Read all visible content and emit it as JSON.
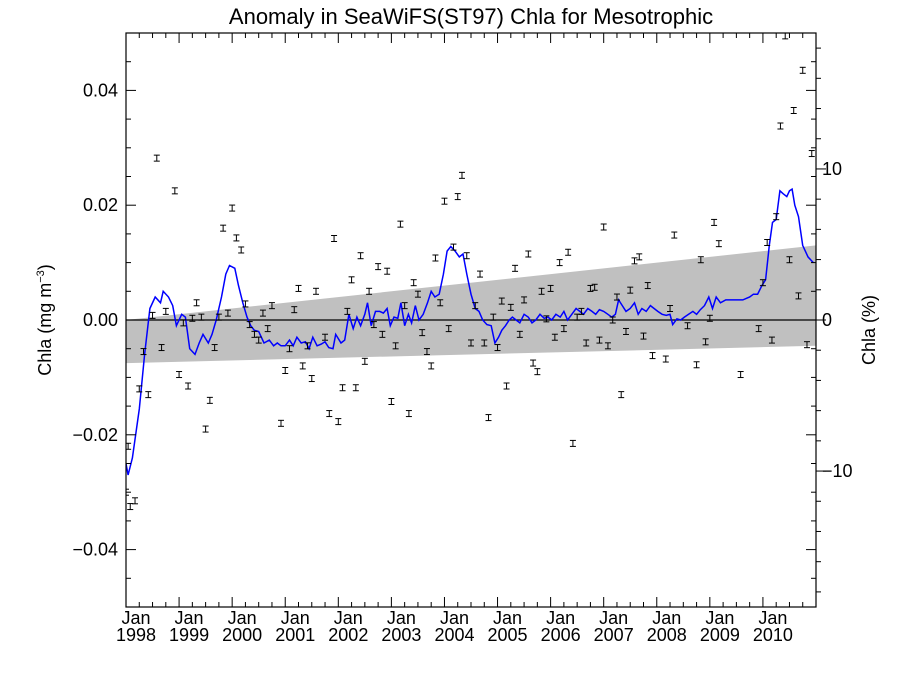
{
  "chart_data": {
    "type": "scatter",
    "title": "Anomaly in SeaWiFS(ST97) Chla for Mesotrophic",
    "ylabel_left": {
      "text": "Chla (mg m",
      "sup": "−3",
      "close": ")"
    },
    "ylabel_right": "Chla (%)",
    "xlim": [
      1998.0,
      2011.0
    ],
    "ylim": [
      -0.05,
      0.05
    ],
    "y2lim": [
      -19.0,
      19.0
    ],
    "x_ticks": [
      {
        "x": 1998.0,
        "month": "Jan",
        "year": "1998"
      },
      {
        "x": 1999.0,
        "month": "Jan",
        "year": "1999"
      },
      {
        "x": 2000.0,
        "month": "Jan",
        "year": "2000"
      },
      {
        "x": 2001.0,
        "month": "Jan",
        "year": "2001"
      },
      {
        "x": 2002.0,
        "month": "Jan",
        "year": "2002"
      },
      {
        "x": 2003.0,
        "month": "Jan",
        "year": "2003"
      },
      {
        "x": 2004.0,
        "month": "Jan",
        "year": "2004"
      },
      {
        "x": 2005.0,
        "month": "Jan",
        "year": "2005"
      },
      {
        "x": 2006.0,
        "month": "Jan",
        "year": "2006"
      },
      {
        "x": 2007.0,
        "month": "Jan",
        "year": "2007"
      },
      {
        "x": 2008.0,
        "month": "Jan",
        "year": "2008"
      },
      {
        "x": 2009.0,
        "month": "Jan",
        "year": "2009"
      },
      {
        "x": 2010.0,
        "month": "Jan",
        "year": "2010"
      }
    ],
    "y_ticks": [
      {
        "v": 0.04,
        "label": "0.04"
      },
      {
        "v": 0.02,
        "label": "0.02"
      },
      {
        "v": 0.0,
        "label": "0.00"
      },
      {
        "v": -0.02,
        "label": "−0.02"
      },
      {
        "v": -0.04,
        "label": "−0.04"
      }
    ],
    "y2_ticks": [
      {
        "v": 10,
        "label": "10"
      },
      {
        "v": 0,
        "label": "0"
      },
      {
        "v": -10,
        "label": "−10"
      }
    ],
    "trend_band": {
      "x": [
        1998.0,
        2011.0
      ],
      "lower": [
        -0.0075,
        -0.0045
      ],
      "upper": [
        0.0,
        0.013
      ]
    },
    "zero_line": 0,
    "anomaly_points": [
      [
        1998.0,
        -0.03
      ],
      [
        1998.04,
        -0.022
      ],
      [
        1998.08,
        -0.0325
      ],
      [
        1998.17,
        -0.0315
      ],
      [
        1998.25,
        -0.012
      ],
      [
        1998.33,
        -0.0055
      ],
      [
        1998.42,
        -0.013
      ],
      [
        1998.5,
        0.0008
      ],
      [
        1998.58,
        0.0282
      ],
      [
        1998.67,
        -0.0048
      ],
      [
        1998.75,
        0.0015
      ],
      [
        1998.92,
        0.0225
      ],
      [
        1999.0,
        -0.0095
      ],
      [
        1999.08,
        -0.0005
      ],
      [
        1999.17,
        -0.0115
      ],
      [
        1999.25,
        0.0003
      ],
      [
        1999.33,
        0.003
      ],
      [
        1999.42,
        0.0005
      ],
      [
        1999.5,
        -0.019
      ],
      [
        1999.58,
        -0.014
      ],
      [
        1999.67,
        -0.0048
      ],
      [
        1999.75,
        0.0005
      ],
      [
        1999.83,
        0.016
      ],
      [
        1999.92,
        0.0012
      ],
      [
        2000.0,
        0.0195
      ],
      [
        2000.08,
        0.0143
      ],
      [
        2000.17,
        0.0122
      ],
      [
        2000.25,
        0.0028
      ],
      [
        2000.33,
        -0.0008
      ],
      [
        2000.42,
        -0.0025
      ],
      [
        2000.5,
        -0.0035
      ],
      [
        2000.58,
        0.0012
      ],
      [
        2000.67,
        -0.0015
      ],
      [
        2000.75,
        0.0025
      ],
      [
        2000.92,
        -0.018
      ],
      [
        2001.0,
        -0.0088
      ],
      [
        2001.08,
        -0.005
      ],
      [
        2001.17,
        0.0018
      ],
      [
        2001.25,
        0.0055
      ],
      [
        2001.33,
        -0.008
      ],
      [
        2001.42,
        -0.0045
      ],
      [
        2001.5,
        -0.0102
      ],
      [
        2001.58,
        0.005
      ],
      [
        2001.75,
        -0.003
      ],
      [
        2001.83,
        -0.0163
      ],
      [
        2001.92,
        0.0142
      ],
      [
        2002.0,
        -0.0177
      ],
      [
        2002.08,
        -0.0118
      ],
      [
        2002.17,
        0.0015
      ],
      [
        2002.25,
        0.007
      ],
      [
        2002.33,
        -0.0118
      ],
      [
        2002.42,
        0.0112
      ],
      [
        2002.5,
        -0.0072
      ],
      [
        2002.58,
        0.005
      ],
      [
        2002.67,
        -0.0008
      ],
      [
        2002.75,
        0.0093
      ],
      [
        2002.83,
        -0.0025
      ],
      [
        2002.92,
        0.0085
      ],
      [
        2003.0,
        -0.0142
      ],
      [
        2003.08,
        -0.0045
      ],
      [
        2003.17,
        0.0167
      ],
      [
        2003.25,
        0.0025
      ],
      [
        2003.33,
        -0.0163
      ],
      [
        2003.42,
        0.0065
      ],
      [
        2003.5,
        0.0045
      ],
      [
        2003.58,
        -0.0022
      ],
      [
        2003.67,
        -0.0055
      ],
      [
        2003.75,
        -0.008
      ],
      [
        2003.83,
        0.0108
      ],
      [
        2003.92,
        0.003
      ],
      [
        2004.0,
        0.0207
      ],
      [
        2004.08,
        -0.0015
      ],
      [
        2004.17,
        0.0127
      ],
      [
        2004.25,
        0.0215
      ],
      [
        2004.33,
        0.0252
      ],
      [
        2004.42,
        0.0112
      ],
      [
        2004.5,
        -0.004
      ],
      [
        2004.58,
        0.0025
      ],
      [
        2004.67,
        0.008
      ],
      [
        2004.75,
        -0.004
      ],
      [
        2004.83,
        -0.017
      ],
      [
        2004.92,
        0.0005
      ],
      [
        2005.0,
        -0.0048
      ],
      [
        2005.08,
        0.0033
      ],
      [
        2005.17,
        -0.0115
      ],
      [
        2005.25,
        0.0022
      ],
      [
        2005.33,
        0.009
      ],
      [
        2005.42,
        -0.0025
      ],
      [
        2005.5,
        0.0035
      ],
      [
        2005.58,
        0.0115
      ],
      [
        2005.67,
        -0.0075
      ],
      [
        2005.75,
        -0.009
      ],
      [
        2005.83,
        0.005
      ],
      [
        2005.92,
        0.0002
      ],
      [
        2006.0,
        0.0055
      ],
      [
        2006.08,
        -0.003
      ],
      [
        2006.17,
        0.01
      ],
      [
        2006.25,
        -0.0015
      ],
      [
        2006.33,
        0.0118
      ],
      [
        2006.42,
        -0.0215
      ],
      [
        2006.5,
        0.0005
      ],
      [
        2006.58,
        0.0015
      ],
      [
        2006.67,
        -0.004
      ],
      [
        2006.75,
        0.0055
      ],
      [
        2006.83,
        0.0057
      ],
      [
        2006.92,
        -0.0035
      ],
      [
        2007.0,
        0.0162
      ],
      [
        2007.08,
        -0.0045
      ],
      [
        2007.17,
        0.0
      ],
      [
        2007.25,
        0.004
      ],
      [
        2007.33,
        -0.013
      ],
      [
        2007.42,
        -0.002
      ],
      [
        2007.5,
        0.0052
      ],
      [
        2007.58,
        0.0103
      ],
      [
        2007.67,
        0.011
      ],
      [
        2007.75,
        -0.0028
      ],
      [
        2007.83,
        0.006
      ],
      [
        2007.92,
        -0.0062
      ],
      [
        2008.17,
        -0.0068
      ],
      [
        2008.25,
        0.002
      ],
      [
        2008.33,
        0.0148
      ],
      [
        2008.58,
        -0.001
      ],
      [
        2008.75,
        -0.0078
      ],
      [
        2008.83,
        0.0105
      ],
      [
        2008.92,
        -0.0038
      ],
      [
        2009.0,
        0.0003
      ],
      [
        2009.08,
        0.017
      ],
      [
        2009.17,
        0.0133
      ],
      [
        2009.58,
        -0.0095
      ],
      [
        2009.92,
        -0.0015
      ],
      [
        2010.0,
        0.0065
      ],
      [
        2010.08,
        0.0135
      ],
      [
        2010.17,
        -0.0035
      ],
      [
        2010.25,
        0.018
      ],
      [
        2010.33,
        0.0338
      ],
      [
        2010.42,
        0.0495
      ],
      [
        2010.5,
        0.0105
      ],
      [
        2010.58,
        0.0365
      ],
      [
        2010.67,
        0.0042
      ],
      [
        2010.75,
        0.0435
      ],
      [
        2010.83,
        -0.0043
      ],
      [
        2010.92,
        0.029
      ]
    ],
    "smooth_line": [
      [
        1998.0,
        -0.025
      ],
      [
        1998.04,
        -0.027
      ],
      [
        1998.12,
        -0.024
      ],
      [
        1998.25,
        -0.0155
      ],
      [
        1998.35,
        -0.006
      ],
      [
        1998.45,
        0.002
      ],
      [
        1998.55,
        0.004
      ],
      [
        1998.65,
        0.003
      ],
      [
        1998.7,
        0.005
      ],
      [
        1998.8,
        0.004
      ],
      [
        1998.88,
        0.0025
      ],
      [
        1998.95,
        -0.001
      ],
      [
        1999.05,
        0.001
      ],
      [
        1999.12,
        0.0005
      ],
      [
        1999.2,
        -0.005
      ],
      [
        1999.3,
        -0.006
      ],
      [
        1999.38,
        -0.004
      ],
      [
        1999.45,
        -0.0025
      ],
      [
        1999.55,
        -0.004
      ],
      [
        1999.62,
        -0.0025
      ],
      [
        1999.7,
        0.0
      ],
      [
        1999.8,
        0.004
      ],
      [
        1999.88,
        0.008
      ],
      [
        1999.95,
        0.0095
      ],
      [
        2000.05,
        0.009
      ],
      [
        2000.12,
        0.006
      ],
      [
        2000.2,
        0.003
      ],
      [
        2000.28,
        0.0005
      ],
      [
        2000.35,
        -0.001
      ],
      [
        2000.42,
        -0.0018
      ],
      [
        2000.5,
        -0.002
      ],
      [
        2000.6,
        -0.004
      ],
      [
        2000.7,
        -0.0035
      ],
      [
        2000.78,
        -0.0045
      ],
      [
        2000.85,
        -0.004
      ],
      [
        2000.92,
        -0.0045
      ],
      [
        2001.0,
        -0.0045
      ],
      [
        2001.08,
        -0.0035
      ],
      [
        2001.15,
        -0.0045
      ],
      [
        2001.22,
        -0.003
      ],
      [
        2001.3,
        -0.004
      ],
      [
        2001.38,
        -0.0038
      ],
      [
        2001.45,
        -0.005
      ],
      [
        2001.52,
        -0.003
      ],
      [
        2001.6,
        -0.0045
      ],
      [
        2001.68,
        -0.0042
      ],
      [
        2001.75,
        -0.0038
      ],
      [
        2001.82,
        -0.0048
      ],
      [
        2001.9,
        -0.005
      ],
      [
        2001.95,
        -0.0025
      ],
      [
        2002.05,
        -0.004
      ],
      [
        2002.12,
        -0.0035
      ],
      [
        2002.2,
        0.001
      ],
      [
        2002.28,
        -0.0015
      ],
      [
        2002.35,
        0.0005
      ],
      [
        2002.42,
        -0.001
      ],
      [
        2002.5,
        0.001
      ],
      [
        2002.55,
        0.003
      ],
      [
        2002.62,
        -0.001
      ],
      [
        2002.7,
        0.0015
      ],
      [
        2002.78,
        0.0015
      ],
      [
        2002.85,
        0.0012
      ],
      [
        2002.92,
        0.002
      ],
      [
        2002.98,
        -0.001
      ],
      [
        2003.05,
        0.0005
      ],
      [
        2003.12,
        0.0003
      ],
      [
        2003.18,
        0.003
      ],
      [
        2003.25,
        -0.001
      ],
      [
        2003.32,
        0.001
      ],
      [
        2003.38,
        -0.0005
      ],
      [
        2003.45,
        0.0025
      ],
      [
        2003.52,
        0.0
      ],
      [
        2003.6,
        0.001
      ],
      [
        2003.68,
        0.003
      ],
      [
        2003.75,
        0.005
      ],
      [
        2003.82,
        0.004
      ],
      [
        2003.9,
        0.0045
      ],
      [
        2003.98,
        0.008
      ],
      [
        2004.05,
        0.012
      ],
      [
        2004.12,
        0.0128
      ],
      [
        2004.2,
        0.012
      ],
      [
        2004.28,
        0.011
      ],
      [
        2004.35,
        0.0115
      ],
      [
        2004.42,
        0.008
      ],
      [
        2004.5,
        0.0045
      ],
      [
        2004.58,
        0.002
      ],
      [
        2004.65,
        0.0015
      ],
      [
        2004.72,
        0.0
      ],
      [
        2004.8,
        -0.0008
      ],
      [
        2004.88,
        -0.001
      ],
      [
        2004.95,
        -0.004
      ],
      [
        2005.02,
        -0.003
      ],
      [
        2005.08,
        -0.0018
      ],
      [
        2005.15,
        -0.001
      ],
      [
        2005.22,
        0.0
      ],
      [
        2005.28,
        0.0005
      ],
      [
        2005.35,
        0.0
      ],
      [
        2005.42,
        -0.0005
      ],
      [
        2005.5,
        0.001
      ],
      [
        2005.58,
        0.0005
      ],
      [
        2005.65,
        -0.0005
      ],
      [
        2005.72,
        0.0
      ],
      [
        2005.8,
        0.001
      ],
      [
        2005.88,
        0.0003
      ],
      [
        2005.95,
        0.0005
      ],
      [
        2006.02,
        0.0
      ],
      [
        2006.1,
        0.001
      ],
      [
        2006.18,
        0.0005
      ],
      [
        2006.25,
        0.0015
      ],
      [
        2006.32,
        0.0
      ],
      [
        2006.4,
        0.001
      ],
      [
        2006.48,
        0.002
      ],
      [
        2006.55,
        0.0015
      ],
      [
        2006.62,
        0.001
      ],
      [
        2006.7,
        0.002
      ],
      [
        2006.78,
        0.0015
      ],
      [
        2006.85,
        0.001
      ],
      [
        2006.92,
        0.0018
      ],
      [
        2007.0,
        0.0015
      ],
      [
        2007.08,
        0.001
      ],
      [
        2007.15,
        0.0005
      ],
      [
        2007.22,
        0.001
      ],
      [
        2007.28,
        0.0035
      ],
      [
        2007.35,
        0.0025
      ],
      [
        2007.42,
        0.0015
      ],
      [
        2007.5,
        0.002
      ],
      [
        2007.58,
        0.003
      ],
      [
        2007.65,
        0.001
      ],
      [
        2007.72,
        0.002
      ],
      [
        2007.8,
        0.0015
      ],
      [
        2007.88,
        0.0025
      ],
      [
        2007.95,
        0.002
      ],
      [
        2008.02,
        0.0015
      ],
      [
        2008.1,
        0.001
      ],
      [
        2008.18,
        0.0008
      ],
      [
        2008.25,
        0.001
      ],
      [
        2008.3,
        -0.0008
      ],
      [
        2008.38,
        0.0002
      ],
      [
        2008.45,
        0.0
      ],
      [
        2008.52,
        0.0005
      ],
      [
        2008.6,
        0.001
      ],
      [
        2008.68,
        0.0015
      ],
      [
        2008.75,
        0.001
      ],
      [
        2008.82,
        0.0018
      ],
      [
        2008.9,
        0.0025
      ],
      [
        2008.98,
        0.004
      ],
      [
        2009.05,
        0.002
      ],
      [
        2009.12,
        0.004
      ],
      [
        2009.2,
        0.003
      ],
      [
        2009.3,
        0.0035
      ],
      [
        2009.45,
        0.0035
      ],
      [
        2009.62,
        0.0035
      ],
      [
        2009.75,
        0.004
      ],
      [
        2009.82,
        0.0045
      ],
      [
        2009.9,
        0.0045
      ],
      [
        2009.98,
        0.006
      ],
      [
        2010.05,
        0.007
      ],
      [
        2010.12,
        0.013
      ],
      [
        2010.18,
        0.017
      ],
      [
        2010.25,
        0.0175
      ],
      [
        2010.32,
        0.0225
      ],
      [
        2010.38,
        0.022
      ],
      [
        2010.45,
        0.0215
      ],
      [
        2010.5,
        0.0225
      ],
      [
        2010.55,
        0.0228
      ],
      [
        2010.6,
        0.02
      ],
      [
        2010.67,
        0.018
      ],
      [
        2010.75,
        0.013
      ],
      [
        2010.85,
        0.011
      ],
      [
        2010.95,
        0.01
      ]
    ],
    "colors": {
      "smooth_line": "#0000ff",
      "trend_band": "#c0c0c0",
      "points": "#000000",
      "axes": "#000000"
    },
    "grid": false
  }
}
